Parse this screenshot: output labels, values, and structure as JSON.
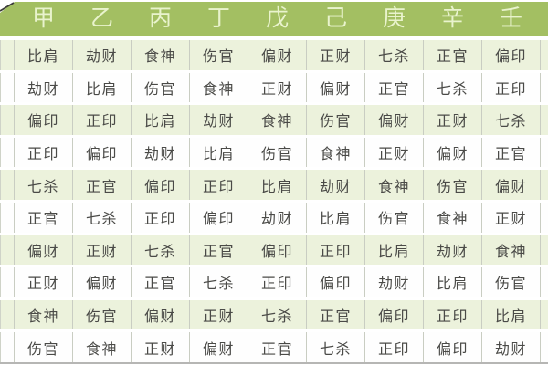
{
  "title": "Ba Zi Ten Gods (十神) lookup table by heavenly stem",
  "colors": {
    "header_bg": "#a3bf62",
    "header_text": "#e9f3cd",
    "row_alt_bg": "#ecf2dc",
    "row_bg": "#fefefe",
    "cell_text": "#4a4a47",
    "border_vertical": "#c9cdc2",
    "header_border_bottom": "#96b253",
    "table_bottom_line": "#b6b6b4",
    "diagonal_line": "#3c3c3a"
  },
  "chart_data": {
    "type": "table",
    "title": "十神对照表 (Ten Gods reference table)",
    "columns": [
      "甲",
      "乙",
      "丙",
      "丁",
      "戊",
      "己",
      "庚",
      "辛",
      "壬"
    ],
    "rows": [
      [
        "比肩",
        "劫财",
        "食神",
        "伤官",
        "偏财",
        "正财",
        "七杀",
        "正官",
        "偏印"
      ],
      [
        "劫财",
        "比肩",
        "伤官",
        "食神",
        "正财",
        "偏财",
        "正官",
        "七杀",
        "正印"
      ],
      [
        "偏印",
        "正印",
        "比肩",
        "劫财",
        "食神",
        "伤官",
        "偏财",
        "正财",
        "七杀"
      ],
      [
        "正印",
        "偏印",
        "劫财",
        "比肩",
        "伤官",
        "食神",
        "正财",
        "偏财",
        "正官"
      ],
      [
        "七杀",
        "正官",
        "偏印",
        "正印",
        "比肩",
        "劫财",
        "食神",
        "伤官",
        "偏财"
      ],
      [
        "正官",
        "七杀",
        "正印",
        "偏印",
        "劫财",
        "比肩",
        "伤官",
        "食神",
        "正财"
      ],
      [
        "偏财",
        "正财",
        "七杀",
        "正官",
        "偏印",
        "正印",
        "比肩",
        "劫财",
        "食神"
      ],
      [
        "正财",
        "偏财",
        "正官",
        "七杀",
        "正印",
        "偏印",
        "劫财",
        "比肩",
        "伤官"
      ],
      [
        "食神",
        "伤官",
        "偏财",
        "正财",
        "七杀",
        "正官",
        "偏印",
        "正印",
        "比肩"
      ],
      [
        "伤官",
        "食神",
        "正财",
        "偏财",
        "正官",
        "七杀",
        "正印",
        "偏印",
        "劫财"
      ]
    ],
    "layout_notes": "header row green with pale text; data rows alternate pale-green/white; leftmost and rightmost columns cropped at image edges; diagonal divider line remnant in top-left corner"
  }
}
